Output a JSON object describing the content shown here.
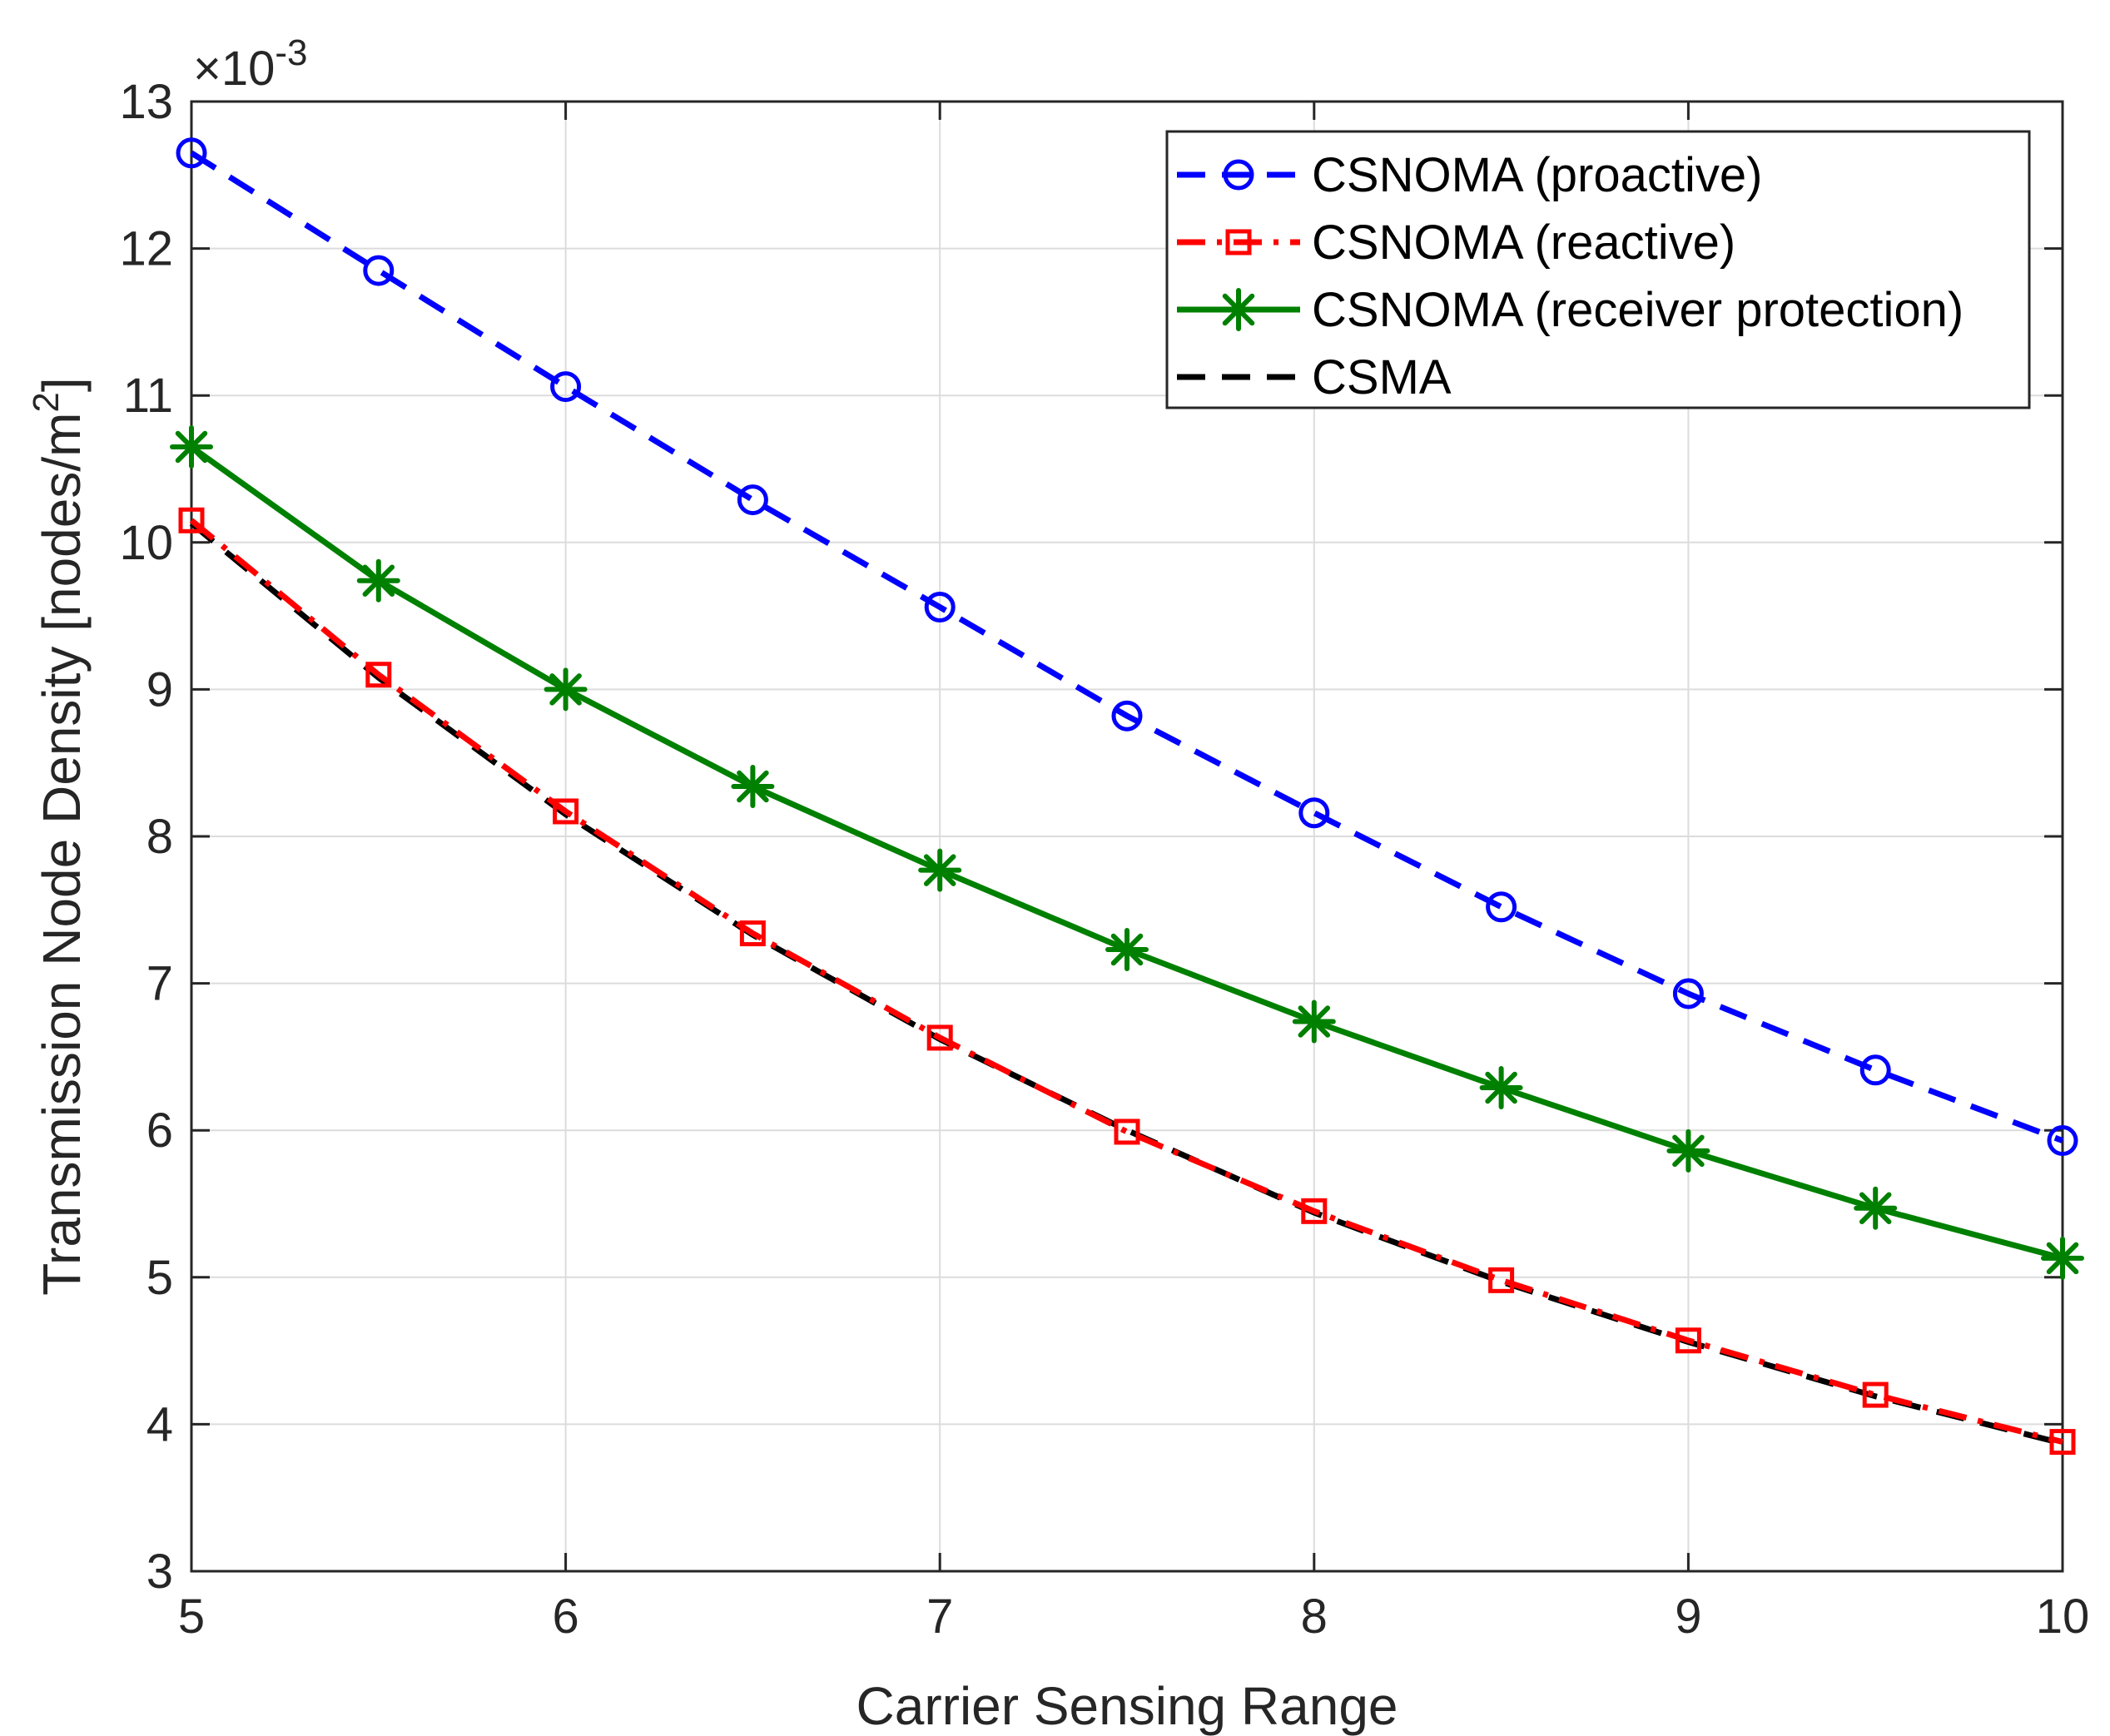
{
  "chart_data": {
    "type": "line",
    "title": "",
    "xlabel": "Carrier Sensing Range",
    "ylabel": "Transmission Node Density [nodes/m",
    "ylabel_superscript": "2",
    "ylabel_suffix": "]",
    "y_exponent_prefix": "×10",
    "y_exponent": "-3",
    "xlim": [
      5,
      10
    ],
    "ylim": [
      3,
      13
    ],
    "xticks": [
      "5",
      "6",
      "7",
      "8",
      "9",
      "10"
    ],
    "yticks": [
      "3",
      "4",
      "5",
      "6",
      "7",
      "8",
      "9",
      "10",
      "11",
      "12",
      "13"
    ],
    "grid": true,
    "legend_position": "top-right",
    "x": [
      5,
      5.5,
      6,
      6.5,
      7,
      7.5,
      8,
      8.5,
      9,
      9.5,
      10
    ],
    "series": [
      {
        "name": "CSNOMA (proactive)",
        "color": "#0000ff",
        "line": "dashed",
        "marker": "circle",
        "values": [
          12.65,
          11.85,
          11.06,
          10.29,
          9.56,
          8.82,
          8.16,
          7.52,
          6.93,
          6.41,
          5.93
        ]
      },
      {
        "name": "CSNOMA (reactive)",
        "color": "#ff0000",
        "line": "dashdot",
        "marker": "square",
        "values": [
          10.15,
          9.1,
          8.17,
          7.34,
          6.63,
          5.99,
          5.45,
          4.98,
          4.57,
          4.2,
          3.88
        ]
      },
      {
        "name": "CSNOMA (receiver protection)",
        "color": "#008000",
        "line": "solid",
        "marker": "asterisk",
        "values": [
          10.65,
          9.74,
          9.0,
          8.34,
          7.77,
          7.23,
          6.74,
          6.29,
          5.86,
          5.47,
          5.13
        ]
      },
      {
        "name": "CSMA",
        "color": "#000000",
        "line": "dashed",
        "marker": "none",
        "values": [
          10.13,
          9.08,
          8.15,
          7.33,
          6.62,
          6.0,
          5.44,
          4.97,
          4.56,
          4.19,
          3.87
        ]
      }
    ]
  }
}
